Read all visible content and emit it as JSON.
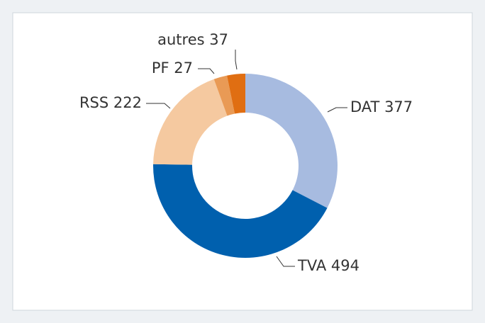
{
  "chart_data": {
    "type": "donut",
    "categories": [
      "DAT",
      "TVA",
      "RSS",
      "PF",
      "autres"
    ],
    "values": [
      377,
      494,
      222,
      27,
      37
    ],
    "colors": [
      "#a7bbe0",
      "#0060ae",
      "#f5c9a0",
      "#e99a55",
      "#e06e12"
    ]
  }
}
